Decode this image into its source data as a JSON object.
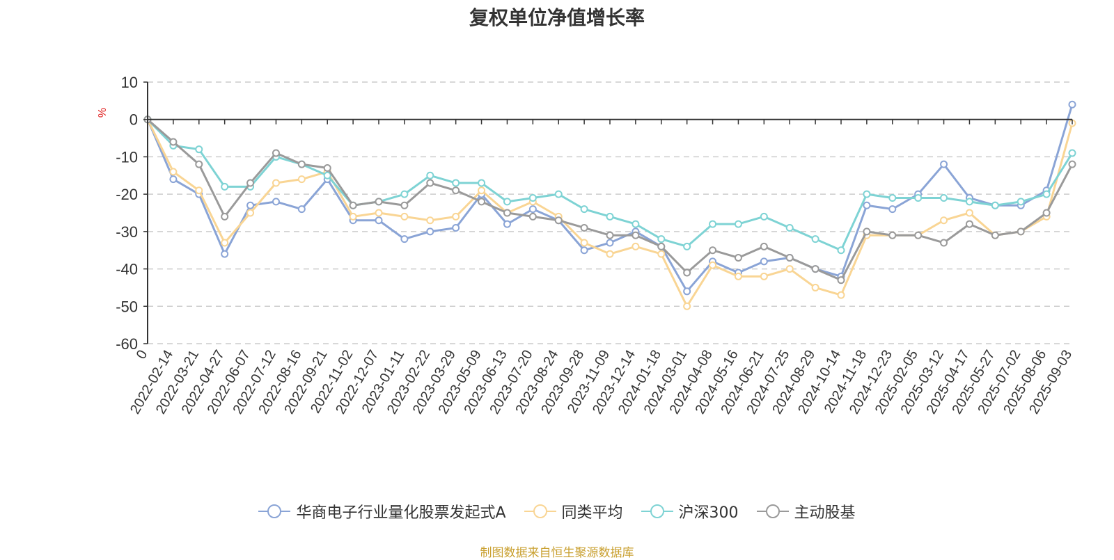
{
  "title": "复权单位净值增长率",
  "source": "制图数据来自恒生聚源数据库",
  "colors": {
    "axis": "#333333",
    "grid": "#cccccc",
    "ylabel": "#e02020",
    "source": "#c9a030"
  },
  "legend": {
    "placement": "bottom-center",
    "marker": "hollow-circle"
  },
  "chart_data": {
    "type": "line",
    "title": "复权单位净值增长率",
    "ylabel": "%",
    "xlabel": "",
    "ylim": [
      -60,
      10
    ],
    "yticks": [
      10,
      0,
      -10,
      -20,
      -30,
      -40,
      -50,
      -60
    ],
    "grid": true,
    "x_tick_labels": [
      "0",
      "2022-02-14",
      "2022-03-21",
      "2022-04-27",
      "2022-06-07",
      "2022-07-12",
      "2022-08-16",
      "2022-09-21",
      "2022-11-02",
      "2022-12-07",
      "2023-01-11",
      "2023-02-22",
      "2023-03-29",
      "2023-05-09",
      "2023-06-13",
      "2023-07-20",
      "2023-08-24",
      "2023-09-28",
      "2023-11-09",
      "2023-12-14",
      "2024-01-18",
      "2024-03-01",
      "2024-04-08",
      "2024-05-16",
      "2024-06-21",
      "2024-07-25",
      "2024-08-29",
      "2024-10-14",
      "2024-11-18",
      "2024-12-23",
      "2025-02-05",
      "2025-03-12",
      "2025-04-17",
      "2025-05-27",
      "2025-07-02",
      "2025-08-06",
      "2025-09-03"
    ],
    "x": [
      0,
      1,
      2,
      3,
      4,
      5,
      6,
      7,
      8,
      9,
      10,
      11,
      12,
      13,
      14,
      15,
      16,
      17,
      18,
      19,
      20,
      21,
      22,
      23,
      24,
      25,
      26,
      27,
      28,
      29,
      30,
      31,
      32,
      33,
      34,
      35,
      36
    ],
    "series": [
      {
        "name": "华商电子行业量化股票发起式A",
        "color": "#8aa4d6",
        "values": [
          0,
          -16,
          -20,
          -36,
          -23,
          -22,
          -24,
          -16,
          -27,
          -27,
          -32,
          -30,
          -29,
          -20,
          -28,
          -24,
          -27,
          -35,
          -33,
          -30,
          -34,
          -46,
          -38,
          -41,
          -38,
          -37,
          -40,
          -42,
          -23,
          -24,
          -20,
          -12,
          -21,
          -23,
          -23,
          -19,
          4
        ]
      },
      {
        "name": "同类平均",
        "color": "#f9d594",
        "values": [
          0,
          -14,
          -19,
          -33,
          -25,
          -17,
          -16,
          -14,
          -26,
          -25,
          -26,
          -27,
          -26,
          -19,
          -25,
          -22,
          -26,
          -33,
          -36,
          -34,
          -36,
          -50,
          -39,
          -42,
          -42,
          -40,
          -45,
          -47,
          -31,
          -31,
          -31,
          -27,
          -25,
          -31,
          -30,
          -26,
          -1
        ]
      },
      {
        "name": "沪深300",
        "color": "#7ed3d4",
        "values": [
          0,
          -7,
          -8,
          -18,
          -18,
          -10,
          -12,
          -15,
          -23,
          -22,
          -20,
          -15,
          -17,
          -17,
          -22,
          -21,
          -20,
          -24,
          -26,
          -28,
          -32,
          -34,
          -28,
          -28,
          -26,
          -29,
          -32,
          -35,
          -20,
          -21,
          -21,
          -21,
          -22,
          -23,
          -22,
          -20,
          -9
        ]
      },
      {
        "name": "主动股基",
        "color": "#9a9a9a",
        "values": [
          0,
          -6,
          -12,
          -26,
          -17,
          -9,
          -12,
          -13,
          -23,
          -22,
          -23,
          -17,
          -19,
          -22,
          -25,
          -26,
          -27,
          -29,
          -31,
          -31,
          -34,
          -41,
          -35,
          -37,
          -34,
          -37,
          -40,
          -43,
          -30,
          -31,
          -31,
          -33,
          -28,
          -31,
          -30,
          -25,
          -12
        ]
      }
    ]
  }
}
